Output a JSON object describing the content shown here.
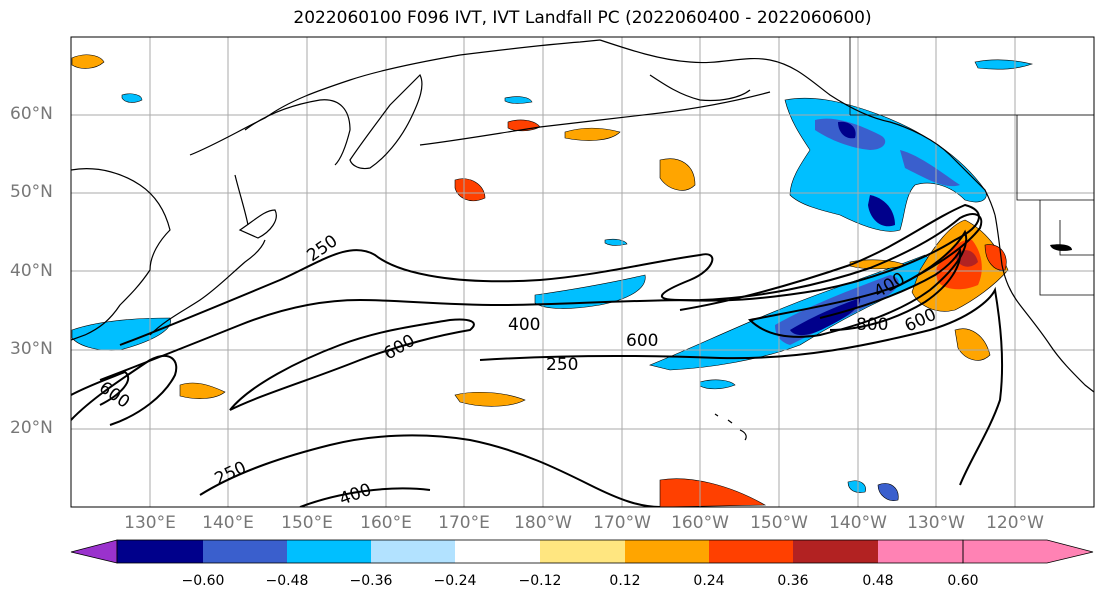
{
  "title": "2022060100 F096 IVT, IVT Landfall PC (2022060400 - 2022060600)",
  "lat_labels": [
    "60°N",
    "50°N",
    "40°N",
    "30°N",
    "20°N"
  ],
  "lon_labels": [
    "130°E",
    "140°E",
    "150°E",
    "160°E",
    "170°E",
    "180°W",
    "170°W",
    "160°W",
    "150°W",
    "140°W",
    "130°W",
    "120°W"
  ],
  "contour_labels": [
    "250",
    "400",
    "600",
    "400",
    "800",
    "600",
    "600",
    "250",
    "600",
    "250",
    "400"
  ],
  "colorbar": {
    "colors": [
      "#9a32cd",
      "#00008b",
      "#3a5fcd",
      "#00bfff",
      "#b2e2ff",
      "#ffffff",
      "#ffe680",
      "#ffa500",
      "#ff4000",
      "#b22222",
      "#ff82b4"
    ],
    "ticks": [
      "−0.60",
      "−0.48",
      "−0.36",
      "−0.24",
      "−0.12",
      "0.12",
      "0.24",
      "0.36",
      "0.48",
      "0.60"
    ]
  },
  "colors": {
    "grid": "#aaaaaa",
    "contour": "#000000",
    "axis_label": "#777777"
  }
}
